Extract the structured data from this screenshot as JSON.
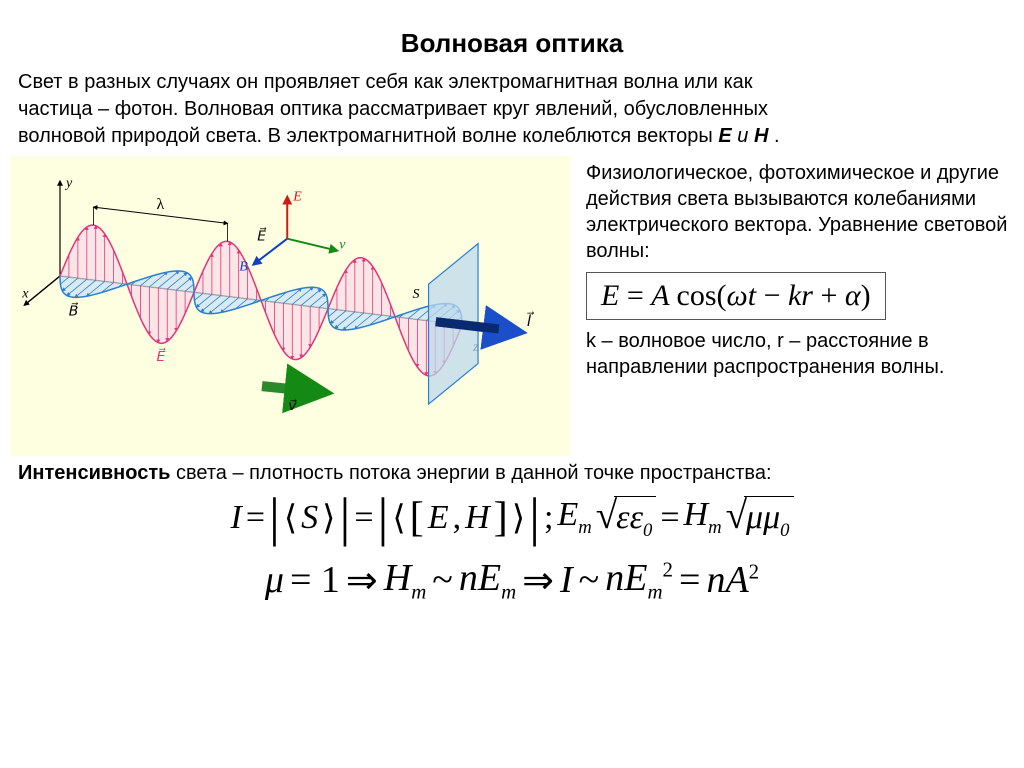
{
  "title": "Волновая оптика",
  "intro": {
    "l1": "Свет в разных случаях он проявляет себя как электромагнитная волна или как",
    "l2a": "частица – фотон. Волновая оптика рассматривает круг явлений, обусловленных",
    "l2b": "волновой природой света. В электромагнитной волне колеблются векторы ",
    "E": "E",
    "and": " и ",
    "H": "H",
    "dot": "."
  },
  "side": {
    "p1": "Физиологическое, фотохимическое и другие действия света вызываются колебаниями электрического вектора. Уравнение световой волны:",
    "eq": {
      "E": "E",
      "eq": " = ",
      "A": "A",
      "cos": "cos(",
      "om": "ω",
      "t": "t",
      "m": " − ",
      "kr": "kr",
      "p": " + ",
      "al": "α",
      "close": ")"
    },
    "p2": "k – волновое число, r – расстояние в направлении распространения волны."
  },
  "intensity": {
    "b": "Интенсивность",
    "rest": " света – плотность потока энергии в данной точке пространства:"
  },
  "f1": {
    "I": "I",
    "eq": "=",
    "S": "S",
    "EH1": "E",
    "EH2": "H",
    "semi": ";",
    "Em": "E",
    "m": "m",
    "ee": "εε",
    "z": "0",
    "Hm": "H",
    "mm": "μμ"
  },
  "f2": {
    "mu": "μ",
    "eq1": "= 1",
    "arr": "⇒",
    "Hm": "H",
    "m": "m",
    "tld": "~",
    "n": "n",
    "Em": "E",
    "I": "I",
    "two": "2",
    "A": "A"
  },
  "diagram": {
    "type": "em-wave-3d",
    "bg": "#fefee0",
    "axis_color": "#000000",
    "E_color": "#e2357a",
    "E_fill": "#fadce8",
    "B_color": "#2a7fd4",
    "B_fill": "#cfe6f4",
    "v_arrow_color": "#2a8a2a",
    "E_axis_red": "#d01818",
    "v_axis_green": "#148a14",
    "B_axis_blue": "#1040c0",
    "prop_arrow": "#1a4fc9",
    "prop_arrow_dark": "#0a2a70",
    "lambda_sym": "λ",
    "plane_fill": "#bcd8ec",
    "plane_stroke": "#2a7fd4",
    "labels": {
      "y": "y",
      "x": "x",
      "z": "z",
      "E": "E",
      "B": "B",
      "v": "v",
      "S": "S",
      "l": "l"
    },
    "wave": {
      "cycles": 3.0,
      "amplitude_E": 55,
      "amplitude_B": 38
    }
  },
  "fonts": {
    "body": 20,
    "title": 26,
    "eq_box": 30,
    "f1": 34,
    "f2": 38
  },
  "colors": {
    "text": "#000000",
    "page_bg": "#ffffff",
    "eq_border": "#555555"
  }
}
